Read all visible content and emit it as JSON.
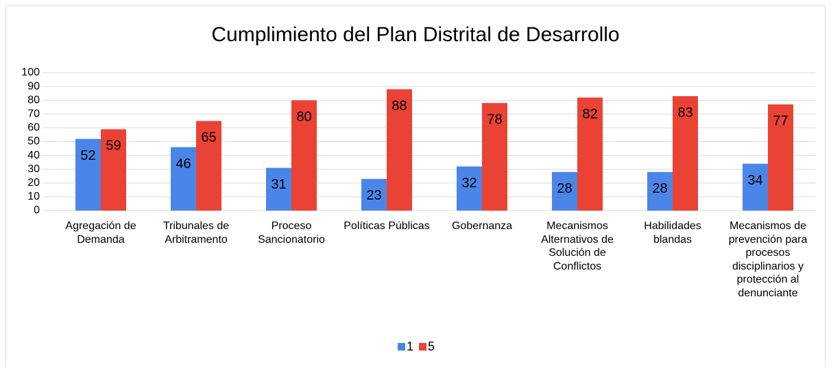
{
  "chart_data": {
    "type": "bar",
    "title": "Cumplimiento del Plan Distrital de Desarrollo",
    "categories": [
      "Agregación de Demanda",
      "Tribunales de Arbitramento",
      "Proceso Sancionatorio",
      "Políticas Públicas",
      "Gobernanza",
      "Mecanismos Alternativos de Solución de Conflictos",
      "Habilidades blandas",
      "Mecanismos de prevención para procesos disciplinarios y protección al denunciante"
    ],
    "series": [
      {
        "name": "1",
        "color": "#4a86e8",
        "values": [
          52,
          46,
          31,
          23,
          32,
          28,
          28,
          34
        ]
      },
      {
        "name": "5",
        "color": "#ea4335",
        "values": [
          59,
          65,
          80,
          88,
          78,
          82,
          83,
          77
        ]
      }
    ],
    "ylim": [
      0,
      100
    ],
    "yticks": [
      0,
      10,
      20,
      30,
      40,
      50,
      60,
      70,
      80,
      90,
      100
    ],
    "grid": true,
    "legend": "bottom"
  }
}
